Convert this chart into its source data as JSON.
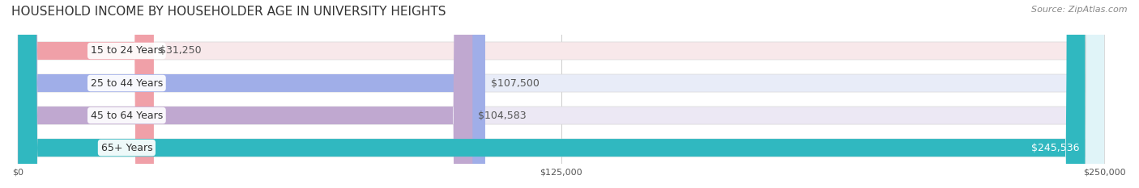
{
  "title": "HOUSEHOLD INCOME BY HOUSEHOLDER AGE IN UNIVERSITY HEIGHTS",
  "source": "Source: ZipAtlas.com",
  "categories": [
    "15 to 24 Years",
    "25 to 44 Years",
    "45 to 64 Years",
    "65+ Years"
  ],
  "values": [
    31250,
    107500,
    104583,
    245536
  ],
  "value_labels": [
    "$31,250",
    "$107,500",
    "$104,583",
    "$245,536"
  ],
  "bar_colors": [
    "#f0a0a8",
    "#a0aee8",
    "#c0a8d0",
    "#30b8c0"
  ],
  "bar_bg_colors": [
    "#f8e8ea",
    "#e8ecf8",
    "#ece8f4",
    "#e0f4f8"
  ],
  "xmax": 250000,
  "xticks": [
    0,
    125000,
    250000
  ],
  "xtick_labels": [
    "$0",
    "$125,000",
    "$250,000"
  ],
  "title_fontsize": 11,
  "source_fontsize": 8,
  "label_fontsize": 9,
  "value_fontsize": 9,
  "background_color": "#ffffff",
  "bar_bg_color": "#f0f0f0"
}
